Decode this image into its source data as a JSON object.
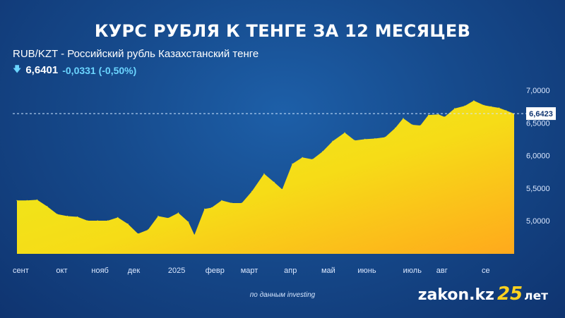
{
  "header": {
    "title": "КУРС РУБЛЯ К ТЕНГЕ ЗА 12 МЕСЯЦЕВ",
    "instrument": "RUB/KZT - Российский рубль Казахстанский тенге",
    "price": "6,6401",
    "change": "-0,0331 (-0,50%)",
    "trend_icon": "down-arrow-icon"
  },
  "footer": {
    "source": "по данным investing",
    "brand_site": "zakon.kz",
    "brand_number": "25",
    "brand_suffix": "лет"
  },
  "colors": {
    "background": "#164a8c",
    "area_top": "#e6ec1a",
    "area_bottom": "#ffb21a",
    "accent_text": "#6bd5ff"
  },
  "chart_data": {
    "type": "area",
    "title": "КУРС РУБЛЯ К ТЕНГЕ ЗА 12 МЕСЯЦЕВ",
    "xlabel": "",
    "ylabel": "",
    "ylim": [
      4.5,
      7.1
    ],
    "grid": false,
    "current_value": 6.6423,
    "current_value_label": "6,6423",
    "y_ticks": [
      {
        "value": 5.0,
        "label": "5,0000"
      },
      {
        "value": 5.5,
        "label": "5,5000"
      },
      {
        "value": 6.0,
        "label": "6,0000"
      },
      {
        "value": 6.5,
        "label": "6,5000"
      },
      {
        "value": 7.0,
        "label": "7,0000"
      }
    ],
    "x_ticks": [
      {
        "t": 0.0,
        "label": "сент"
      },
      {
        "t": 4.3,
        "label": "окт"
      },
      {
        "t": 7.8,
        "label": "нояб"
      },
      {
        "t": 11.4,
        "label": "дек"
      },
      {
        "t": 15.4,
        "label": "2025"
      },
      {
        "t": 19.1,
        "label": "февр"
      },
      {
        "t": 22.6,
        "label": "март"
      },
      {
        "t": 26.9,
        "label": "апр"
      },
      {
        "t": 30.6,
        "label": "май"
      },
      {
        "t": 34.2,
        "label": "июнь"
      },
      {
        "t": 38.7,
        "label": "июль"
      },
      {
        "t": 42.0,
        "label": "авг"
      },
      {
        "t": 46.5,
        "label": "се"
      }
    ],
    "series": [
      {
        "values": [
          [
            0.0,
            5.31
          ],
          [
            1.0,
            5.31
          ],
          [
            2.0,
            5.32
          ],
          [
            3.0,
            5.22
          ],
          [
            4.0,
            5.1
          ],
          [
            5.0,
            5.07
          ],
          [
            6.0,
            5.06
          ],
          [
            7.0,
            5.0
          ],
          [
            8.0,
            5.0
          ],
          [
            9.0,
            5.0
          ],
          [
            10.0,
            5.05
          ],
          [
            11.0,
            4.95
          ],
          [
            12.0,
            4.8
          ],
          [
            13.0,
            4.86
          ],
          [
            14.0,
            5.07
          ],
          [
            15.0,
            5.04
          ],
          [
            16.0,
            5.12
          ],
          [
            17.0,
            4.98
          ],
          [
            17.6,
            4.78
          ],
          [
            18.6,
            5.18
          ],
          [
            19.3,
            5.2
          ],
          [
            20.3,
            5.31
          ],
          [
            21.3,
            5.27
          ],
          [
            22.3,
            5.27
          ],
          [
            23.3,
            5.45
          ],
          [
            24.5,
            5.72
          ],
          [
            25.5,
            5.59
          ],
          [
            26.3,
            5.48
          ],
          [
            27.3,
            5.87
          ],
          [
            28.3,
            5.97
          ],
          [
            29.3,
            5.94
          ],
          [
            30.3,
            6.06
          ],
          [
            31.3,
            6.22
          ],
          [
            32.5,
            6.35
          ],
          [
            33.5,
            6.23
          ],
          [
            34.5,
            6.25
          ],
          [
            35.5,
            6.26
          ],
          [
            36.5,
            6.28
          ],
          [
            37.5,
            6.42
          ],
          [
            38.3,
            6.57
          ],
          [
            39.2,
            6.47
          ],
          [
            40.0,
            6.46
          ],
          [
            40.8,
            6.62
          ],
          [
            41.8,
            6.63
          ],
          [
            42.4,
            6.59
          ],
          [
            43.4,
            6.72
          ],
          [
            44.4,
            6.76
          ],
          [
            45.3,
            6.84
          ],
          [
            46.3,
            6.77
          ],
          [
            47.0,
            6.75
          ],
          [
            47.8,
            6.73
          ],
          [
            48.5,
            6.69
          ],
          [
            49.3,
            6.64
          ]
        ]
      }
    ]
  }
}
